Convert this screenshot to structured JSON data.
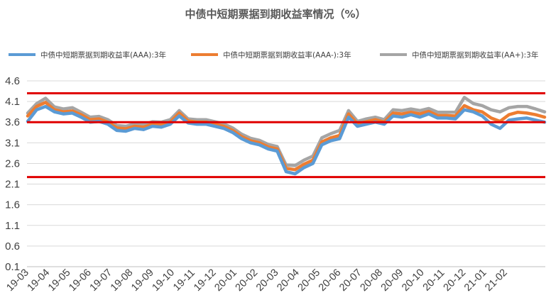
{
  "chart_data": {
    "type": "line",
    "title": "中债中短期票据到期收益率情况（%）",
    "xlabel": "",
    "ylabel": "",
    "ylim": [
      0.1,
      4.6
    ],
    "yticks": [
      "4.6",
      "4.1",
      "3.6",
      "3.1",
      "2.6",
      "2.1",
      "1.6",
      "1.1",
      "0.6",
      "0.1"
    ],
    "xticks": [
      "19-03",
      "19-04",
      "19-05",
      "19-06",
      "19-07",
      "19-08",
      "19-09",
      "19-10",
      "19-11",
      "19-12",
      "20-01",
      "20-02",
      "20-03",
      "20-04",
      "20-05",
      "20-06",
      "20-07",
      "20-08",
      "20-09",
      "20-10",
      "20-11",
      "20-12",
      "21-01",
      "21-02"
    ],
    "grid": true,
    "legend_position": "top",
    "reference_lines": [
      {
        "value": 4.3,
        "color": "#e00000"
      },
      {
        "value": 3.6,
        "color": "#e00000"
      },
      {
        "value": 2.27,
        "color": "#e00000"
      }
    ],
    "series": [
      {
        "name": "中债中短期票据到期收益率(AAA):3年",
        "color": "#5b9bd5",
        "values": [
          3.62,
          3.9,
          3.98,
          3.85,
          3.8,
          3.82,
          3.72,
          3.6,
          3.62,
          3.55,
          3.4,
          3.38,
          3.45,
          3.42,
          3.5,
          3.48,
          3.55,
          3.75,
          3.58,
          3.55,
          3.55,
          3.5,
          3.45,
          3.35,
          3.2,
          3.1,
          3.05,
          2.95,
          2.9,
          2.4,
          2.35,
          2.5,
          2.6,
          3.05,
          3.15,
          3.2,
          3.72,
          3.5,
          3.55,
          3.6,
          3.55,
          3.75,
          3.72,
          3.78,
          3.72,
          3.8,
          3.7,
          3.7,
          3.68,
          3.9,
          3.85,
          3.75,
          3.55,
          3.45,
          3.65,
          3.68,
          3.7,
          3.65,
          3.6
        ]
      },
      {
        "name": "中债中短期票据到期收益率(AAA-):3年",
        "color": "#ed7d31",
        "values": [
          3.75,
          3.98,
          4.08,
          3.9,
          3.85,
          3.87,
          3.78,
          3.66,
          3.68,
          3.6,
          3.46,
          3.44,
          3.5,
          3.48,
          3.55,
          3.53,
          3.6,
          3.82,
          3.63,
          3.6,
          3.6,
          3.55,
          3.5,
          3.4,
          3.25,
          3.15,
          3.1,
          3.0,
          2.95,
          2.48,
          2.45,
          2.58,
          2.68,
          3.12,
          3.22,
          3.28,
          3.8,
          3.56,
          3.61,
          3.66,
          3.6,
          3.82,
          3.8,
          3.84,
          3.8,
          3.86,
          3.76,
          3.76,
          3.75,
          4.0,
          3.9,
          3.85,
          3.7,
          3.62,
          3.78,
          3.84,
          3.82,
          3.78,
          3.72
        ]
      },
      {
        "name": "中债中短期票据到期收益率(AA+):3年",
        "color": "#a5a5a5",
        "values": [
          3.82,
          4.05,
          4.18,
          3.97,
          3.92,
          3.95,
          3.84,
          3.72,
          3.74,
          3.66,
          3.52,
          3.5,
          3.56,
          3.54,
          3.61,
          3.6,
          3.66,
          3.88,
          3.68,
          3.66,
          3.66,
          3.61,
          3.56,
          3.46,
          3.31,
          3.21,
          3.16,
          3.06,
          3.01,
          2.56,
          2.55,
          2.68,
          2.78,
          3.22,
          3.32,
          3.4,
          3.88,
          3.62,
          3.68,
          3.72,
          3.66,
          3.9,
          3.88,
          3.92,
          3.88,
          3.93,
          3.84,
          3.84,
          3.84,
          4.2,
          4.05,
          4.0,
          3.9,
          3.85,
          3.95,
          3.98,
          3.98,
          3.92,
          3.85
        ]
      }
    ]
  }
}
